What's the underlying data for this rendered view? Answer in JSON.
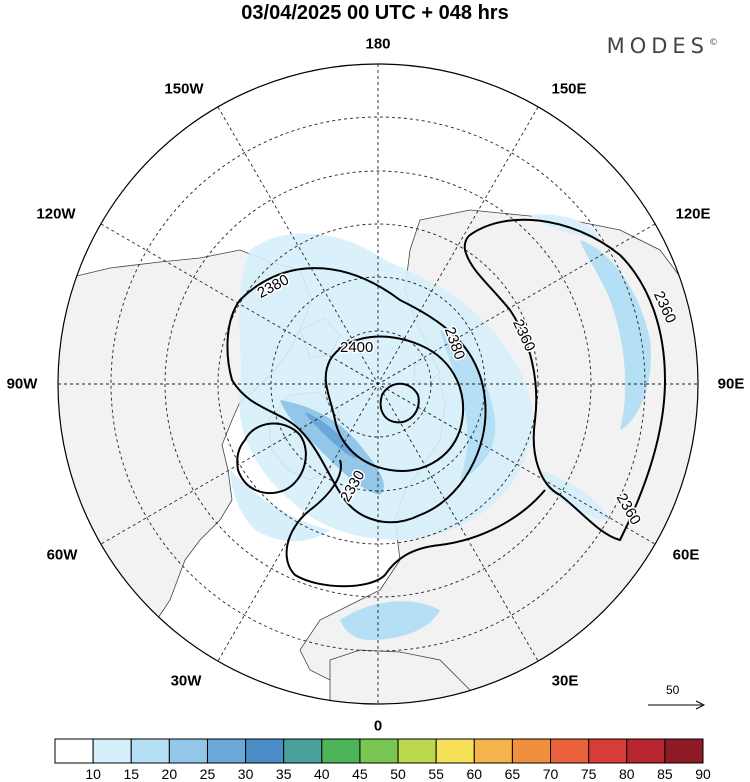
{
  "title": "03/04/2025  00 UTC  + 048 hrs",
  "brand": "MODES",
  "brand_mark": "©",
  "longitude_labels": {
    "top": "180",
    "bottom": "0",
    "left": "90W",
    "right": "90E",
    "upper_left_150": "150W",
    "upper_right_150": "150E",
    "upper_left_120": "120W",
    "upper_right_120": "120E",
    "lower_left_60": "60W",
    "lower_right_60": "60E",
    "lower_left_30": "30W",
    "lower_right_30": "30E"
  },
  "contour_labels": {
    "c2380_a": "2380",
    "c2380_b": "2380",
    "c2400": "2400",
    "c2360_a": "2360",
    "c2360_b": "2360",
    "c2360_c": "2360",
    "c2330": "2330"
  },
  "vector_reference": {
    "label": "50"
  },
  "colorbar": {
    "ticks": [
      "10",
      "15",
      "20",
      "25",
      "30",
      "35",
      "40",
      "45",
      "50",
      "55",
      "60",
      "65",
      "70",
      "75",
      "80",
      "85",
      "90"
    ],
    "colors": [
      "#ffffff",
      "#d6effb",
      "#b4dff5",
      "#92c7ea",
      "#6aa8da",
      "#4a8cc6",
      "#4aa09a",
      "#4cb55a",
      "#79c653",
      "#bcd84f",
      "#f6e05a",
      "#f5b54c",
      "#f0903f",
      "#e9623b",
      "#d93c37",
      "#b82631",
      "#8d1a24"
    ]
  },
  "colors": {
    "land": "#f2f2f2",
    "ocean": "#ffffff",
    "coast": "#444444",
    "grid": "#222222",
    "contour": "#000000"
  }
}
